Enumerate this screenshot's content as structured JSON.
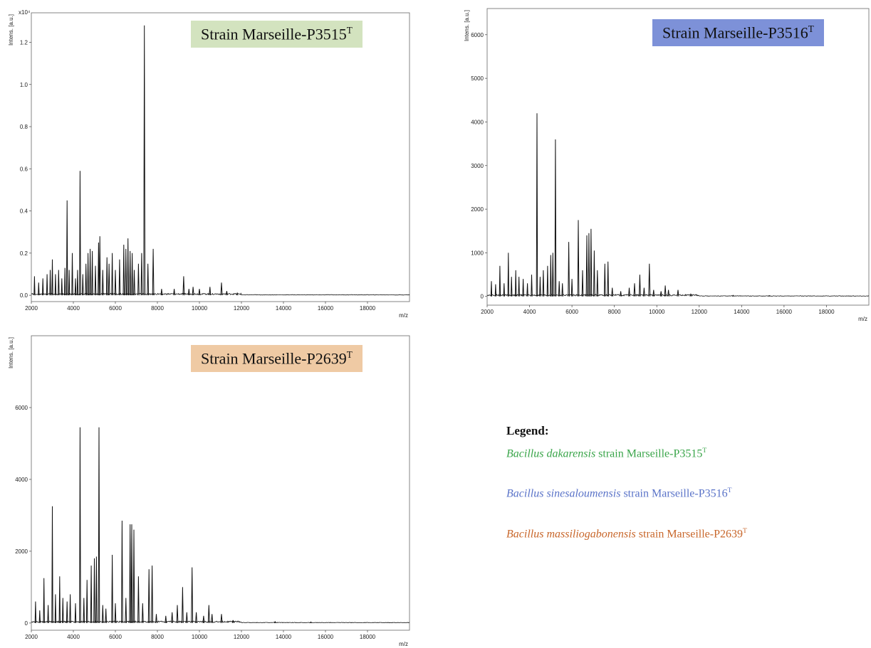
{
  "colors": {
    "trace": "#111111",
    "box_green": "#d3e3bf",
    "box_blue": "#7d91d8",
    "box_orange": "#efcaa4",
    "legend_green": "#3aa54a",
    "legend_blue": "#5a73c8",
    "legend_orange": "#c8662a"
  },
  "chart_data": [
    {
      "type": "line",
      "panel": "p3515",
      "strain_label": "Strain Marseille-P3515",
      "superscript": "T",
      "ylabel": "Intens. [a.u.]",
      "xlabel": "m/z",
      "exponent_label": "x10⁴",
      "xlim": [
        2000,
        20000
      ],
      "ylim": [
        -0.03,
        1.34
      ],
      "x_ticks": [
        2000,
        4000,
        6000,
        8000,
        10000,
        12000,
        14000,
        16000,
        18000
      ],
      "y_ticks": [
        0.0,
        0.2,
        0.4,
        0.6,
        0.8,
        1.0,
        1.2
      ],
      "y_tick_labels": [
        "0.0",
        "0.2",
        "0.4",
        "0.6",
        "0.8",
        "1.0",
        "1.2"
      ],
      "peaks": [
        [
          2150,
          0.09
        ],
        [
          2350,
          0.06
        ],
        [
          2550,
          0.08
        ],
        [
          2750,
          0.1
        ],
        [
          2900,
          0.12
        ],
        [
          3000,
          0.17
        ],
        [
          3150,
          0.1
        ],
        [
          3300,
          0.12
        ],
        [
          3450,
          0.08
        ],
        [
          3600,
          0.13
        ],
        [
          3700,
          0.45
        ],
        [
          3800,
          0.12
        ],
        [
          3950,
          0.2
        ],
        [
          4100,
          0.08
        ],
        [
          4200,
          0.12
        ],
        [
          4320,
          0.59
        ],
        [
          4450,
          0.1
        ],
        [
          4600,
          0.15
        ],
        [
          4700,
          0.2
        ],
        [
          4800,
          0.22
        ],
        [
          4900,
          0.21
        ],
        [
          5050,
          0.14
        ],
        [
          5200,
          0.25
        ],
        [
          5260,
          0.28
        ],
        [
          5400,
          0.12
        ],
        [
          5600,
          0.18
        ],
        [
          5700,
          0.15
        ],
        [
          5850,
          0.2
        ],
        [
          6000,
          0.12
        ],
        [
          6200,
          0.17
        ],
        [
          6400,
          0.24
        ],
        [
          6500,
          0.22
        ],
        [
          6600,
          0.27
        ],
        [
          6700,
          0.21
        ],
        [
          6800,
          0.2
        ],
        [
          6900,
          0.12
        ],
        [
          7100,
          0.15
        ],
        [
          7250,
          0.2
        ],
        [
          7380,
          1.28
        ],
        [
          7550,
          0.15
        ],
        [
          7800,
          0.22
        ],
        [
          8200,
          0.03
        ],
        [
          8800,
          0.03
        ],
        [
          9250,
          0.09
        ],
        [
          9500,
          0.03
        ],
        [
          9700,
          0.04
        ],
        [
          10000,
          0.03
        ],
        [
          10500,
          0.04
        ],
        [
          11050,
          0.06
        ],
        [
          11300,
          0.02
        ],
        [
          11800,
          0.01
        ]
      ]
    },
    {
      "type": "line",
      "panel": "p3516",
      "strain_label": "Strain Marseille-P3516",
      "superscript": "T",
      "ylabel": "Intens. [a.u.]",
      "xlabel": "m/z",
      "xlim": [
        2000,
        20000
      ],
      "ylim": [
        -200,
        6600
      ],
      "x_ticks": [
        2000,
        4000,
        6000,
        8000,
        10000,
        12000,
        14000,
        16000,
        18000
      ],
      "y_ticks": [
        0,
        1000,
        2000,
        3000,
        4000,
        5000,
        6000
      ],
      "y_tick_labels": [
        "0",
        "1000",
        "2000",
        "3000",
        "4000",
        "5000",
        "6000"
      ],
      "peaks": [
        [
          2200,
          350
        ],
        [
          2400,
          280
        ],
        [
          2600,
          700
        ],
        [
          2800,
          300
        ],
        [
          3000,
          1000
        ],
        [
          3150,
          450
        ],
        [
          3350,
          600
        ],
        [
          3500,
          450
        ],
        [
          3700,
          400
        ],
        [
          3900,
          300
        ],
        [
          4100,
          500
        ],
        [
          4350,
          4200
        ],
        [
          4500,
          450
        ],
        [
          4650,
          600
        ],
        [
          4850,
          700
        ],
        [
          5000,
          950
        ],
        [
          5100,
          1000
        ],
        [
          5220,
          3600
        ],
        [
          5400,
          350
        ],
        [
          5550,
          300
        ],
        [
          5850,
          1250
        ],
        [
          6000,
          400
        ],
        [
          6300,
          1750
        ],
        [
          6500,
          600
        ],
        [
          6700,
          1400
        ],
        [
          6800,
          1450
        ],
        [
          6900,
          1550
        ],
        [
          7050,
          1050
        ],
        [
          7200,
          600
        ],
        [
          7550,
          750
        ],
        [
          7700,
          800
        ],
        [
          7900,
          200
        ],
        [
          8300,
          120
        ],
        [
          8700,
          200
        ],
        [
          8950,
          300
        ],
        [
          9200,
          500
        ],
        [
          9400,
          200
        ],
        [
          9650,
          750
        ],
        [
          9850,
          150
        ],
        [
          10200,
          120
        ],
        [
          10400,
          250
        ],
        [
          10550,
          150
        ],
        [
          11000,
          150
        ],
        [
          11600,
          50
        ],
        [
          13600,
          25
        ],
        [
          15300,
          20
        ]
      ]
    },
    {
      "type": "line",
      "panel": "p2639",
      "strain_label": "Strain Marseille-P2639",
      "superscript": "T",
      "ylabel": "Intens. [a.u.]",
      "xlabel": "m/z",
      "xlim": [
        2000,
        20000
      ],
      "ylim": [
        -200,
        8000
      ],
      "x_ticks": [
        2000,
        4000,
        6000,
        8000,
        10000,
        12000,
        14000,
        16000,
        18000
      ],
      "y_ticks": [
        0,
        2000,
        4000,
        6000
      ],
      "y_tick_labels": [
        "0",
        "2000",
        "4000",
        "6000"
      ],
      "peaks": [
        [
          2200,
          600
        ],
        [
          2400,
          350
        ],
        [
          2600,
          1250
        ],
        [
          2800,
          500
        ],
        [
          3000,
          3250
        ],
        [
          3150,
          800
        ],
        [
          3350,
          1300
        ],
        [
          3500,
          700
        ],
        [
          3700,
          600
        ],
        [
          3850,
          800
        ],
        [
          4100,
          550
        ],
        [
          4320,
          5450
        ],
        [
          4500,
          700
        ],
        [
          4650,
          1200
        ],
        [
          4850,
          1600
        ],
        [
          5000,
          1800
        ],
        [
          5100,
          1850
        ],
        [
          5220,
          5450
        ],
        [
          5400,
          500
        ],
        [
          5550,
          400
        ],
        [
          5850,
          1900
        ],
        [
          6000,
          550
        ],
        [
          6320,
          2850
        ],
        [
          6500,
          700
        ],
        [
          6700,
          2750
        ],
        [
          6780,
          2750
        ],
        [
          6880,
          2600
        ],
        [
          7100,
          1300
        ],
        [
          7300,
          550
        ],
        [
          7600,
          1500
        ],
        [
          7750,
          1600
        ],
        [
          7950,
          250
        ],
        [
          8400,
          200
        ],
        [
          8700,
          300
        ],
        [
          8950,
          500
        ],
        [
          9200,
          1000
        ],
        [
          9400,
          300
        ],
        [
          9650,
          1550
        ],
        [
          9850,
          300
        ],
        [
          10200,
          200
        ],
        [
          10450,
          500
        ],
        [
          10600,
          250
        ],
        [
          11050,
          250
        ],
        [
          11600,
          80
        ],
        [
          13600,
          40
        ],
        [
          15300,
          30
        ]
      ]
    }
  ],
  "legend": {
    "title": "Legend:",
    "items": [
      {
        "species": "Bacillus dakarensis",
        "rest": " strain Marseille-P3515",
        "sup": "T"
      },
      {
        "species": "Bacillus sinesaloumensis",
        "rest": " strain Marseille-P3516",
        "sup": "T"
      },
      {
        "species": "Bacillus massiliogabonensis",
        "rest": " strain Marseille-P2639",
        "sup": "T"
      }
    ]
  }
}
